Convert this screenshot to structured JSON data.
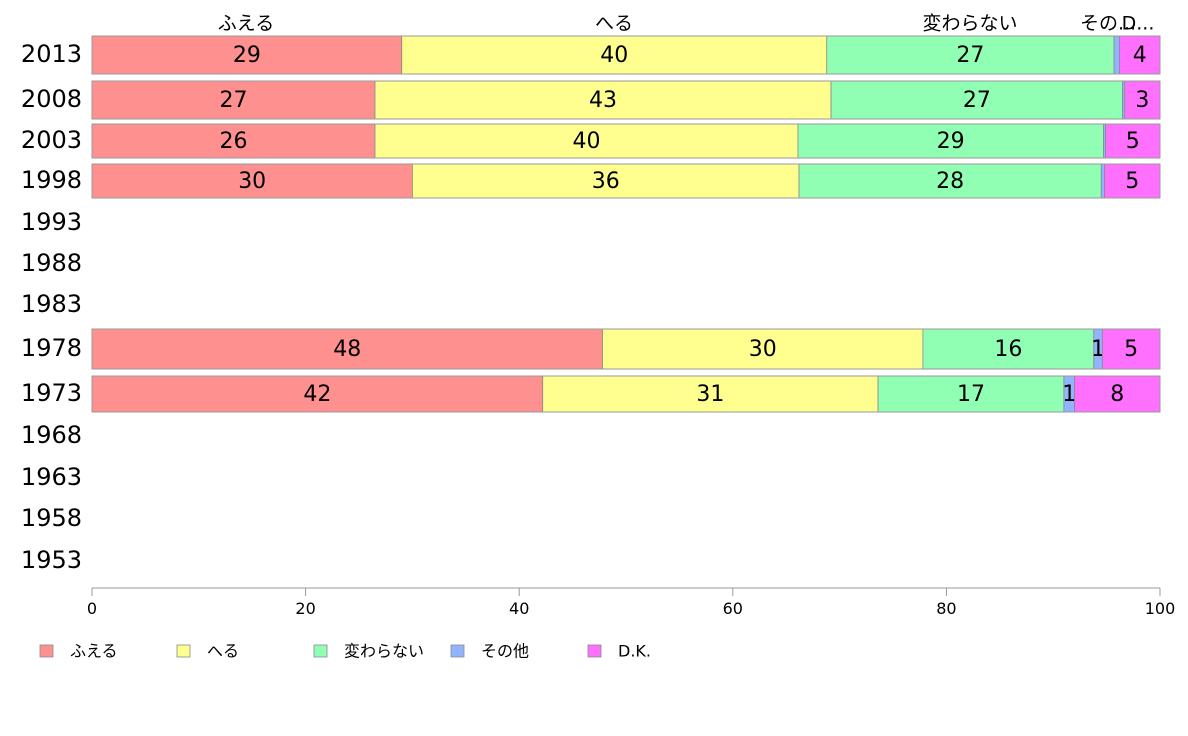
{
  "chart_data": {
    "type": "bar",
    "orientation": "horizontal",
    "stacked": true,
    "categories": [
      "2013",
      "2008",
      "2003",
      "1998",
      "1993",
      "1988",
      "1983",
      "1978",
      "1973",
      "1968",
      "1963",
      "1958",
      "1953"
    ],
    "series": [
      {
        "name": "ふえる",
        "color": "#ff9090",
        "values": [
          29,
          26.5,
          26.5,
          30,
          null,
          null,
          null,
          47.8,
          42.2,
          null,
          null,
          null,
          null
        ],
        "labels": [
          "29",
          "27",
          "26",
          "30",
          "",
          "",
          "",
          "48",
          "42",
          "",
          "",
          "",
          ""
        ]
      },
      {
        "name": "へる",
        "color": "#ffff90",
        "values": [
          39.8,
          42.7,
          39.6,
          36.2,
          null,
          null,
          null,
          30,
          31.4,
          null,
          null,
          null,
          null
        ],
        "labels": [
          "40",
          "43",
          "40",
          "36",
          "",
          "",
          "",
          "30",
          "31",
          "",
          "",
          "",
          ""
        ]
      },
      {
        "name": "変わらない",
        "color": "#90ffb4",
        "values": [
          26.9,
          27.3,
          28.6,
          28.3,
          null,
          null,
          null,
          16,
          17.4,
          null,
          null,
          null,
          null
        ],
        "labels": [
          "27",
          "27",
          "29",
          "28",
          "",
          "",
          "",
          "16",
          "17",
          "",
          "",
          "",
          ""
        ]
      },
      {
        "name": "その他",
        "color": "#90b4ff",
        "values": [
          0.5,
          0.2,
          0.2,
          0.3,
          null,
          null,
          null,
          0.8,
          1,
          null,
          null,
          null,
          null
        ],
        "labels": [
          "",
          "",
          "",
          "",
          "",
          "",
          "",
          "1",
          "1",
          "",
          "",
          "",
          ""
        ]
      },
      {
        "name": "D.K.",
        "color": "#ff70ff",
        "values": [
          3.8,
          3.3,
          5.1,
          5.2,
          null,
          null,
          null,
          5.4,
          8,
          null,
          null,
          null,
          null
        ],
        "labels": [
          "4",
          "3",
          "5",
          "5",
          "",
          "",
          "",
          "5",
          "8",
          "",
          "",
          "",
          ""
        ]
      }
    ],
    "column_labels": [
      "ふえる",
      "へる",
      "変わらない",
      "その...",
      "D..."
    ],
    "xlim": [
      0,
      100
    ],
    "x_ticks": [
      "0",
      "20",
      "40",
      "60",
      "80",
      "100"
    ],
    "xlabel": "",
    "ylabel": "",
    "title": "",
    "grid": false,
    "legend_position": "bottom",
    "legend": [
      "ふえる",
      "へる",
      "変わらない",
      "その他",
      "D.K."
    ]
  }
}
